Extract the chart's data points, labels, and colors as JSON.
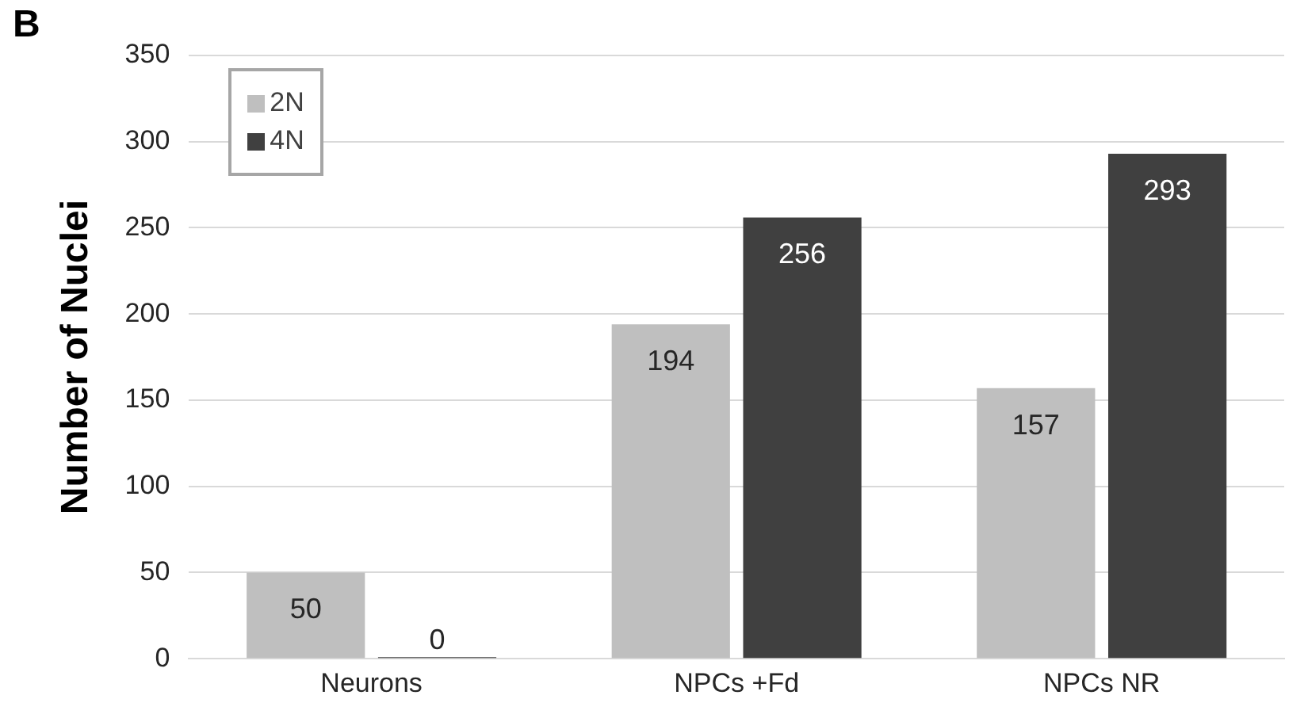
{
  "chart_data": {
    "type": "bar",
    "ylabel": "Number of Nuclei",
    "annotations": [
      "B"
    ],
    "categories": [
      "Neurons",
      "NPCs +Fd",
      "NPCs NR"
    ],
    "series": [
      {
        "name": "2N",
        "color": "#bfbfbf",
        "values": [
          50,
          194,
          157
        ]
      },
      {
        "name": "4N",
        "color": "#404040",
        "values": [
          0,
          256,
          293
        ]
      }
    ],
    "ylim": [
      0,
      350
    ],
    "yticks": [
      0,
      50,
      100,
      150,
      200,
      250,
      300,
      350
    ],
    "grid": "y",
    "legend": "top left",
    "data_labels": true
  }
}
